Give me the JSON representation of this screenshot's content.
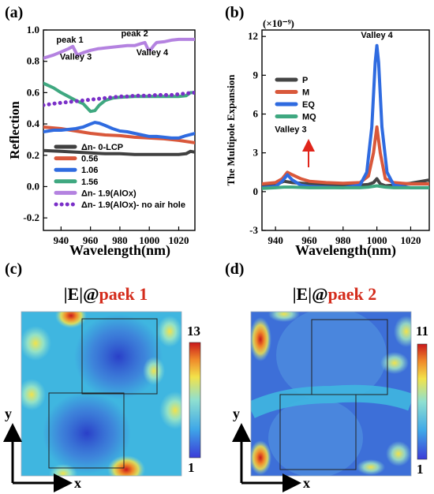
{
  "chart_data": [
    {
      "panel": "(a)",
      "type": "line",
      "xlabel": "Wavelength(nm)",
      "ylabel": "Reflection",
      "xlim": [
        928,
        1031
      ],
      "ylim": [
        -0.28,
        1.0
      ],
      "xticks": [
        940,
        960,
        980,
        1000,
        1020
      ],
      "yticks": [
        -0.2,
        0.0,
        0.2,
        0.4,
        0.6,
        0.8,
        1.0
      ],
      "ytick_labels": [
        "-0.2",
        "0.0",
        "0.2",
        "0.4",
        "0.6",
        "0.8",
        "1.0"
      ],
      "legend_position": "bottom-left",
      "annotations": [
        {
          "text": "peak 1",
          "x": 946,
          "y": 0.92
        },
        {
          "text": "Valley 3",
          "x": 950,
          "y": 0.81
        },
        {
          "text": "peak 2",
          "x": 990,
          "y": 0.96
        },
        {
          "text": "Valley 4",
          "x": 1002,
          "y": 0.84
        }
      ],
      "series": [
        {
          "name": "Δn- 0-LCP",
          "color": "#404040",
          "style": "solid",
          "x": [
            928,
            940,
            950,
            960,
            970,
            980,
            990,
            1000,
            1010,
            1020,
            1025,
            1028,
            1031
          ],
          "y": [
            0.23,
            0.225,
            0.22,
            0.215,
            0.21,
            0.21,
            0.205,
            0.205,
            0.205,
            0.205,
            0.21,
            0.225,
            0.22
          ]
        },
        {
          "name": "0.56",
          "color": "#d9583b",
          "style": "solid",
          "x": [
            928,
            940,
            950,
            960,
            970,
            980,
            990,
            1000,
            1010,
            1020,
            1031
          ],
          "y": [
            0.38,
            0.37,
            0.355,
            0.34,
            0.33,
            0.325,
            0.315,
            0.31,
            0.305,
            0.295,
            0.28
          ]
        },
        {
          "name": "1.06",
          "color": "#2f6be0",
          "style": "solid",
          "x": [
            928,
            935,
            940,
            945,
            950,
            955,
            960,
            963,
            966,
            970,
            975,
            980,
            985,
            990,
            995,
            1000,
            1005,
            1010,
            1015,
            1020,
            1025,
            1031
          ],
          "y": [
            0.35,
            0.36,
            0.36,
            0.365,
            0.37,
            0.38,
            0.4,
            0.41,
            0.405,
            0.39,
            0.37,
            0.355,
            0.35,
            0.34,
            0.33,
            0.32,
            0.32,
            0.315,
            0.31,
            0.31,
            0.325,
            0.34
          ]
        },
        {
          "name": "1.56",
          "color": "#3fa880",
          "style": "solid",
          "x": [
            928,
            935,
            940,
            945,
            950,
            955,
            958,
            960,
            963,
            966,
            970,
            975,
            980,
            990,
            1000,
            1010,
            1020,
            1025,
            1028,
            1031
          ],
          "y": [
            0.66,
            0.63,
            0.6,
            0.575,
            0.55,
            0.53,
            0.5,
            0.48,
            0.485,
            0.52,
            0.55,
            0.565,
            0.57,
            0.575,
            0.575,
            0.575,
            0.575,
            0.58,
            0.6,
            0.6
          ]
        },
        {
          "name": "Δn- 1.9(AlOx)",
          "color": "#b482e0",
          "style": "solid",
          "x": [
            928,
            935,
            940,
            945,
            948,
            951,
            955,
            960,
            965,
            970,
            975,
            980,
            985,
            990,
            995,
            997,
            999,
            1001,
            1003,
            1005,
            1010,
            1015,
            1020,
            1025,
            1031
          ],
          "y": [
            0.82,
            0.84,
            0.86,
            0.88,
            0.895,
            0.84,
            0.855,
            0.87,
            0.88,
            0.885,
            0.89,
            0.895,
            0.9,
            0.9,
            0.915,
            0.92,
            0.88,
            0.875,
            0.9,
            0.92,
            0.925,
            0.935,
            0.94,
            0.94,
            0.94
          ]
        },
        {
          "name": "Δn- 1.9(AlOx)- no air hole",
          "color": "#7a2fc8",
          "style": "dotted",
          "x": [
            928,
            935,
            940,
            945,
            950,
            955,
            960,
            965,
            970,
            975,
            980,
            985,
            990,
            995,
            1000,
            1005,
            1010,
            1015,
            1020,
            1025,
            1031
          ],
          "y": [
            0.52,
            0.53,
            0.535,
            0.54,
            0.545,
            0.55,
            0.555,
            0.56,
            0.565,
            0.57,
            0.575,
            0.575,
            0.58,
            0.58,
            0.58,
            0.585,
            0.585,
            0.585,
            0.59,
            0.595,
            0.6
          ]
        }
      ]
    },
    {
      "panel": "(b)",
      "type": "line",
      "multiplier": "(×10⁻⁹)",
      "xlabel": "Wavelength(nm)",
      "ylabel": "The Multipole Expansion",
      "xlim": [
        932,
        1031
      ],
      "ylim": [
        -3,
        12.5
      ],
      "xticks": [
        940,
        960,
        980,
        1000,
        1020
      ],
      "yticks": [
        -3,
        0,
        3,
        6,
        9,
        12
      ],
      "ytick_labels": [
        "-3",
        "0",
        "3",
        "6",
        "9",
        "12"
      ],
      "legend_position": "top-left",
      "annotations": [
        {
          "text": "Valley 3",
          "x": 949,
          "y": 4.6
        },
        {
          "text": "Valley 4",
          "x": 1000,
          "y": 11.9
        }
      ],
      "series": [
        {
          "name": "P",
          "color": "#454545",
          "style": "solid",
          "x": [
            932,
            940,
            945,
            950,
            960,
            970,
            980,
            990,
            995,
            998,
            1000,
            1002,
            1005,
            1010,
            1020,
            1031
          ],
          "y": [
            0.5,
            0.55,
            0.8,
            0.7,
            0.6,
            0.55,
            0.5,
            0.5,
            0.55,
            0.7,
            1.0,
            0.6,
            0.45,
            0.5,
            0.65,
            0.9
          ]
        },
        {
          "name": "M",
          "color": "#d9583b",
          "style": "solid",
          "x": [
            932,
            940,
            944,
            947,
            950,
            955,
            960,
            970,
            980,
            990,
            995,
            998,
            1000,
            1002,
            1005,
            1010,
            1020,
            1031
          ],
          "y": [
            0.6,
            0.7,
            1.0,
            1.5,
            1.3,
            1.0,
            0.8,
            0.7,
            0.65,
            0.7,
            1.2,
            3.0,
            5.0,
            3.0,
            1.0,
            0.7,
            0.6,
            0.6
          ]
        },
        {
          "name": "EQ",
          "color": "#2f6be0",
          "style": "solid",
          "x": [
            932,
            940,
            944,
            947,
            950,
            955,
            960,
            970,
            980,
            990,
            994,
            997,
            999,
            1000,
            1001,
            1003,
            1006,
            1010,
            1020,
            1031
          ],
          "y": [
            0.3,
            0.4,
            0.8,
            1.3,
            0.9,
            0.5,
            0.4,
            0.35,
            0.3,
            0.5,
            1.5,
            5.0,
            10.0,
            11.3,
            10.0,
            5.0,
            1.5,
            0.5,
            0.3,
            0.3
          ]
        },
        {
          "name": "MQ",
          "color": "#3fa880",
          "style": "solid",
          "x": [
            932,
            940,
            945,
            950,
            960,
            970,
            980,
            990,
            995,
            1000,
            1005,
            1010,
            1020,
            1031
          ],
          "y": [
            0.25,
            0.3,
            0.35,
            0.35,
            0.3,
            0.3,
            0.3,
            0.3,
            0.35,
            0.45,
            0.35,
            0.3,
            0.3,
            0.3
          ]
        }
      ]
    },
    {
      "panel": "(c)",
      "type": "heatmap",
      "title_prefix": "|E|@",
      "title_highlight": "paek 1",
      "colorbar_max": "13",
      "colorbar_min": "1",
      "x_axis": "x",
      "y_axis": "y"
    },
    {
      "panel": "(d)",
      "type": "heatmap",
      "title_prefix": "|E|@",
      "title_highlight": "paek 2",
      "colorbar_max": "11",
      "colorbar_min": "1",
      "x_axis": "x",
      "y_axis": "y"
    }
  ],
  "colors": {
    "highlight_red": "#d42c1c",
    "arrow_red": "#e0251b",
    "map_background": "#3fb6e0",
    "map_square": "#3d6fd8",
    "hot_red": "#c9181b",
    "hot_yellow": "#f2e24a"
  }
}
